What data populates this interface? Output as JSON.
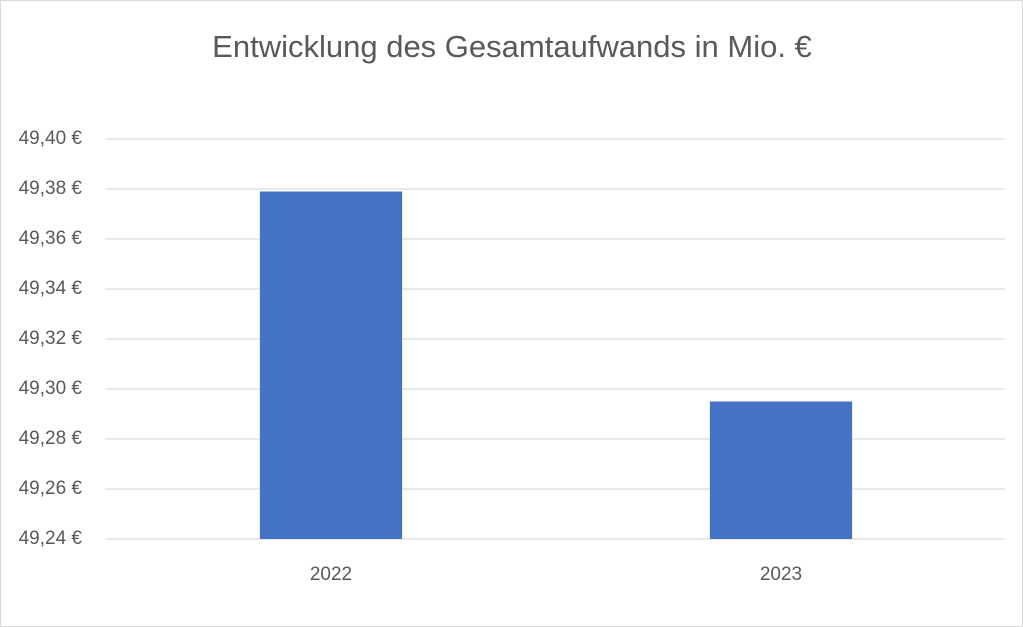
{
  "chart_data": {
    "type": "bar",
    "title": "Entwicklung des Gesamtaufwands in Mio. €",
    "categories": [
      "2022",
      "2023"
    ],
    "values": [
      49.379,
      49.295
    ],
    "color": "#4472c4",
    "ylim": [
      49.24,
      49.4
    ],
    "yticks": [
      {
        "value": 49.24,
        "label": "49,24 €"
      },
      {
        "value": 49.26,
        "label": "49,26 €"
      },
      {
        "value": 49.28,
        "label": "49,28 €"
      },
      {
        "value": 49.3,
        "label": "49,30 €"
      },
      {
        "value": 49.32,
        "label": "49,32 €"
      },
      {
        "value": 49.34,
        "label": "49,34 €"
      },
      {
        "value": 49.36,
        "label": "49,36 €"
      },
      {
        "value": 49.38,
        "label": "49,38 €"
      },
      {
        "value": 49.4,
        "label": "49,40 €"
      }
    ],
    "grid": true
  }
}
